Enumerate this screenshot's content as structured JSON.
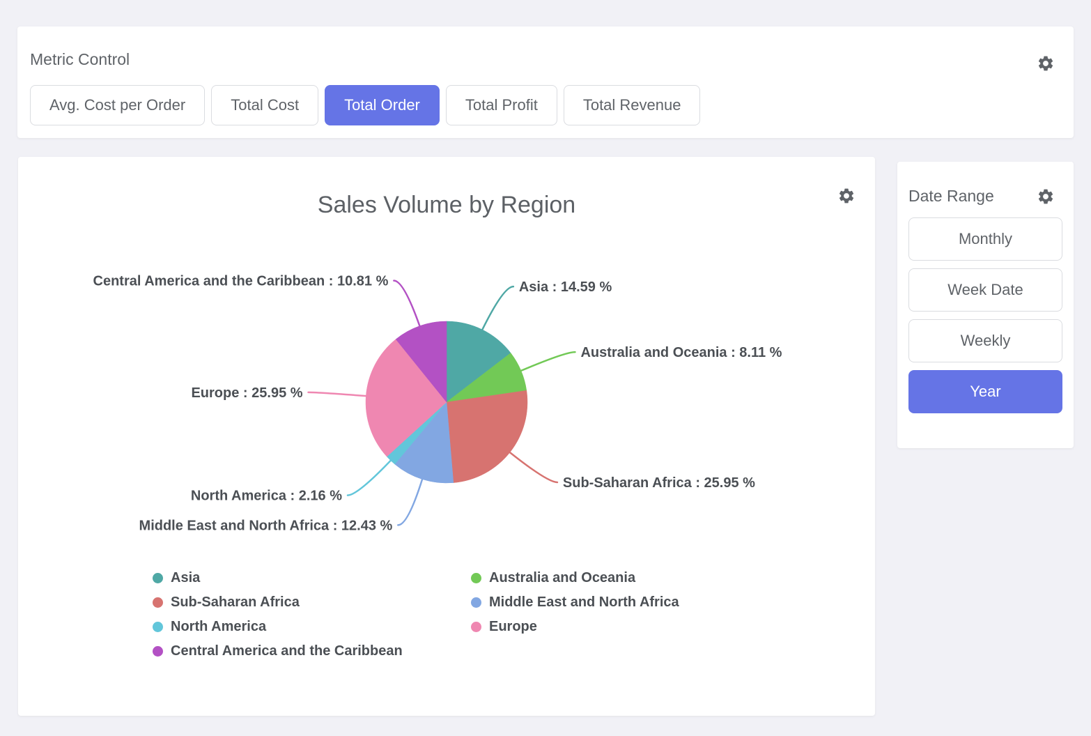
{
  "colors": {
    "accent": "#6574e6",
    "page_bg": "#f1f1f6",
    "panel_bg": "#ffffff"
  },
  "metric_control": {
    "title": "Metric Control",
    "buttons": [
      {
        "label": "Avg. Cost per Order",
        "selected": false
      },
      {
        "label": "Total Cost",
        "selected": false
      },
      {
        "label": "Total Order",
        "selected": true
      },
      {
        "label": "Total Profit",
        "selected": false
      },
      {
        "label": "Total Revenue",
        "selected": false
      }
    ]
  },
  "date_range": {
    "title": "Date Range",
    "buttons": [
      {
        "label": "Monthly",
        "selected": false
      },
      {
        "label": "Week Date",
        "selected": false
      },
      {
        "label": "Weekly",
        "selected": false
      },
      {
        "label": "Year",
        "selected": true
      }
    ]
  },
  "chart_data": {
    "type": "pie",
    "title": "Sales Volume by Region",
    "unit": "%",
    "legend_position": "bottom",
    "label_format": "name : value %",
    "slices": [
      {
        "name": "Asia",
        "value": 14.59,
        "color": "#4fa8a5",
        "label": "Asia : 14.59 %"
      },
      {
        "name": "Australia and Oceania",
        "value": 8.11,
        "color": "#72c956",
        "label": "Australia and Oceania : 8.11 %"
      },
      {
        "name": "Sub-Saharan Africa",
        "value": 25.95,
        "color": "#d77370",
        "label": "Sub-Saharan Africa : 25.95 %"
      },
      {
        "name": "Middle East and North Africa",
        "value": 12.43,
        "color": "#82a7e2",
        "label": "Middle East and North Africa : 12.43 %"
      },
      {
        "name": "North America",
        "value": 2.16,
        "color": "#62c6da",
        "label": "North America : 2.16 %"
      },
      {
        "name": "Europe",
        "value": 25.95,
        "color": "#ef87b1",
        "label": "Europe : 25.95 %"
      },
      {
        "name": "Central America and the Caribbean",
        "value": 10.81,
        "color": "#b351c4",
        "label": "Central America and the Caribbean : 10.81 %"
      }
    ]
  }
}
